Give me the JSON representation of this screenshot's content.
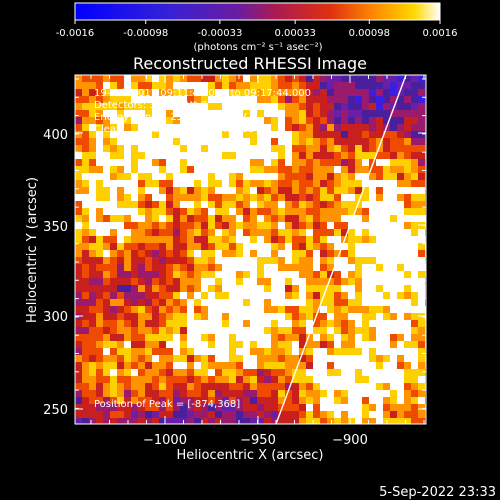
{
  "colorbar": {
    "min": -0.0016,
    "max": 0.0016,
    "tick_labels": [
      "-0.0016",
      "-0.00098",
      "-0.00033",
      "0.00033",
      "0.00098",
      "0.0016"
    ],
    "unit_label": "(photons cm⁻² s⁻¹ asec⁻²)"
  },
  "image": {
    "title": "Reconstructed RHESSI Image",
    "info_lines": [
      "19-Feb-2017 09:11:44.000 to 09:17:44.000",
      "Detectors: 3F 6F, Att 0",
      "Energy Range: 25.0 - 50.0 keV",
      "Clean     Total counts: 3.74E+03"
    ],
    "peak_text": "Position of Peak = [-874,368]",
    "xlabel": "Heliocentric X (arcsec)",
    "ylabel": "Heliocentric Y (arcsec)",
    "x_tick_labels": [
      "−1000",
      "−950",
      "−900"
    ],
    "y_tick_labels": [
      "400",
      "350",
      "300",
      "250"
    ]
  },
  "footer": {
    "timestamp": "5-Sep-2022 23:33"
  },
  "colors": {
    "background": "#000000",
    "colormap": [
      "#0000ff",
      "#3b1fe0",
      "#6a1fa8",
      "#9a1b6e",
      "#c81f1f",
      "#ee4a00",
      "#ff9400",
      "#ffd000",
      "#ffffff"
    ]
  }
}
